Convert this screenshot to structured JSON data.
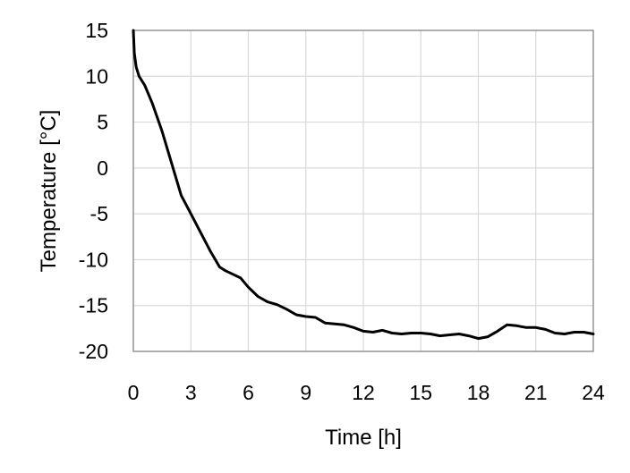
{
  "chart_data": {
    "type": "line",
    "xlabel": "Time [h]",
    "ylabel": "Temperature [°C]",
    "xlim": [
      0,
      24
    ],
    "ylim": [
      -20,
      15
    ],
    "x_ticks": [
      0,
      3,
      6,
      9,
      12,
      15,
      18,
      21,
      24
    ],
    "y_ticks": [
      15,
      10,
      5,
      0,
      -5,
      -10,
      -15,
      -20
    ],
    "grid": true,
    "legend": "none",
    "series": [
      {
        "color": "#000000",
        "x": [
          0,
          0.05,
          0.15,
          0.3,
          0.6,
          1.0,
          1.5,
          2.0,
          2.5,
          3.0,
          3.5,
          4.0,
          4.5,
          4.8,
          5.2,
          5.6,
          6.0,
          6.5,
          7.0,
          7.5,
          8.0,
          8.5,
          9.0,
          9.5,
          10.0,
          10.5,
          11.0,
          11.5,
          12.0,
          12.5,
          13.0,
          13.5,
          14.0,
          14.5,
          15.0,
          15.5,
          16.0,
          16.5,
          17.0,
          17.5,
          18.0,
          18.5,
          19.0,
          19.5,
          20.0,
          20.5,
          21.0,
          21.5,
          22.0,
          22.5,
          23.0,
          23.5,
          24.0
        ],
        "y": [
          15,
          12.5,
          11,
          10,
          9,
          7,
          4,
          0.5,
          -3,
          -5,
          -7,
          -9,
          -10.8,
          -11.2,
          -11.6,
          -12.0,
          -13.0,
          -14.0,
          -14.6,
          -14.9,
          -15.4,
          -16.0,
          -16.2,
          -16.3,
          -16.9,
          -17.0,
          -17.1,
          -17.4,
          -17.8,
          -17.9,
          -17.7,
          -18.0,
          -18.1,
          -18.0,
          -18.0,
          -18.1,
          -18.3,
          -18.2,
          -18.1,
          -18.3,
          -18.6,
          -18.4,
          -17.8,
          -17.1,
          -17.2,
          -17.4,
          -17.4,
          -17.6,
          -18.0,
          -18.1,
          -17.9,
          -17.9,
          -18.1
        ]
      }
    ]
  }
}
